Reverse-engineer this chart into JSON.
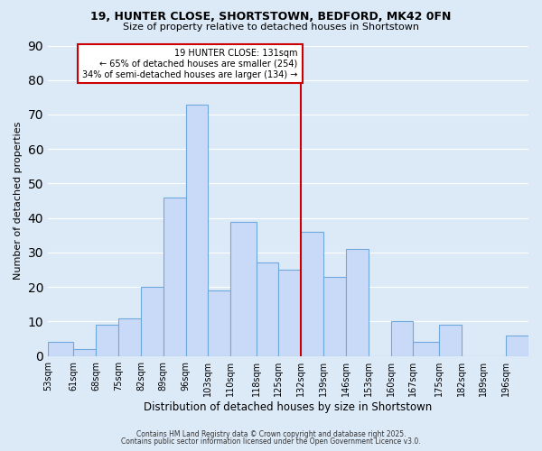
{
  "title": "19, HUNTER CLOSE, SHORTSTOWN, BEDFORD, MK42 0FN",
  "subtitle": "Size of property relative to detached houses in Shortstown",
  "xlabel": "Distribution of detached houses by size in Shortstown",
  "ylabel": "Number of detached properties",
  "bar_labels": [
    "53sqm",
    "61sqm",
    "68sqm",
    "75sqm",
    "82sqm",
    "89sqm",
    "96sqm",
    "103sqm",
    "110sqm",
    "118sqm",
    "125sqm",
    "132sqm",
    "139sqm",
    "146sqm",
    "153sqm",
    "160sqm",
    "167sqm",
    "175sqm",
    "182sqm",
    "189sqm",
    "196sqm"
  ],
  "bar_values": [
    4,
    2,
    9,
    11,
    20,
    46,
    73,
    19,
    39,
    27,
    25,
    36,
    23,
    31,
    0,
    10,
    4,
    9,
    0,
    0,
    6
  ],
  "bar_color": "#c9daf8",
  "bar_edge_color": "#6fa8dc",
  "vline_color": "#cc0000",
  "annotation_title": "19 HUNTER CLOSE: 131sqm",
  "annotation_line1": "← 65% of detached houses are smaller (254)",
  "annotation_line2": "34% of semi-detached houses are larger (134) →",
  "annotation_box_edge_color": "#cc0000",
  "annotation_box_face_color": "#ffffff",
  "bin_edges": [
    53,
    61,
    68,
    75,
    82,
    89,
    96,
    103,
    110,
    118,
    125,
    132,
    139,
    146,
    153,
    160,
    167,
    175,
    182,
    189,
    196,
    203
  ],
  "vline_pos": 132,
  "ylim": [
    0,
    90
  ],
  "yticks": [
    0,
    10,
    20,
    30,
    40,
    50,
    60,
    70,
    80,
    90
  ],
  "grid_color": "#ffffff",
  "bg_color": "#dce9f7",
  "footnote1": "Contains HM Land Registry data © Crown copyright and database right 2025.",
  "footnote2": "Contains public sector information licensed under the Open Government Licence v3.0."
}
